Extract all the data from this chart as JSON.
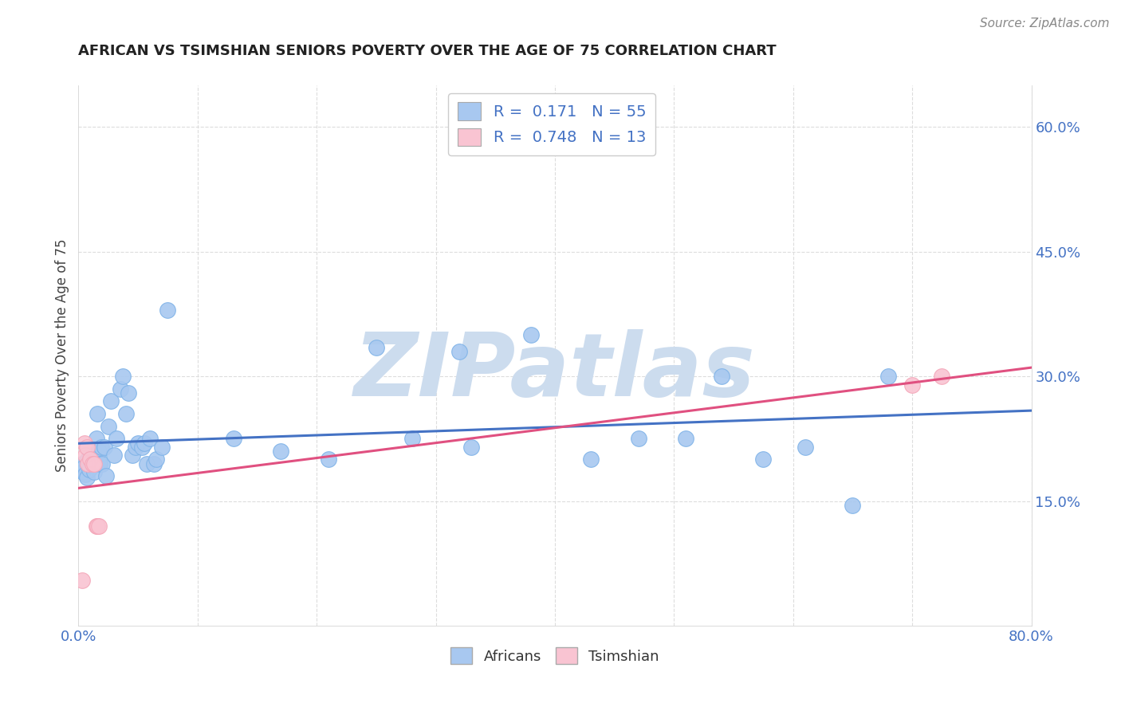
{
  "title": "AFRICAN VS TSIMSHIAN SENIORS POVERTY OVER THE AGE OF 75 CORRELATION CHART",
  "source": "Source: ZipAtlas.com",
  "ylabel": "Seniors Poverty Over the Age of 75",
  "xlim": [
    0.0,
    0.8
  ],
  "ylim": [
    0.0,
    0.65
  ],
  "african_color": "#a8c8f0",
  "african_edge_color": "#7fb3e8",
  "tsimshian_color": "#f9c4d2",
  "tsimshian_edge_color": "#f4a7b9",
  "trend_african_color": "#4472c4",
  "trend_tsimshian_color": "#e05080",
  "R_african": 0.171,
  "N_african": 55,
  "R_tsimshian": 0.748,
  "N_tsimshian": 13,
  "african_x": [
    0.003,
    0.004,
    0.005,
    0.006,
    0.007,
    0.008,
    0.009,
    0.01,
    0.011,
    0.012,
    0.013,
    0.014,
    0.015,
    0.016,
    0.017,
    0.018,
    0.019,
    0.02,
    0.022,
    0.023,
    0.025,
    0.027,
    0.03,
    0.032,
    0.035,
    0.037,
    0.04,
    0.042,
    0.045,
    0.048,
    0.05,
    0.053,
    0.055,
    0.057,
    0.06,
    0.063,
    0.065,
    0.07,
    0.075,
    0.13,
    0.17,
    0.21,
    0.25,
    0.28,
    0.33,
    0.38,
    0.43,
    0.47,
    0.51,
    0.54,
    0.575,
    0.61,
    0.65,
    0.68,
    0.32
  ],
  "african_y": [
    0.195,
    0.185,
    0.192,
    0.182,
    0.178,
    0.2,
    0.188,
    0.205,
    0.2,
    0.195,
    0.185,
    0.198,
    0.225,
    0.255,
    0.21,
    0.195,
    0.215,
    0.195,
    0.215,
    0.18,
    0.24,
    0.27,
    0.205,
    0.225,
    0.285,
    0.3,
    0.255,
    0.28,
    0.205,
    0.215,
    0.22,
    0.215,
    0.22,
    0.195,
    0.225,
    0.195,
    0.2,
    0.215,
    0.38,
    0.225,
    0.21,
    0.2,
    0.335,
    0.225,
    0.215,
    0.35,
    0.2,
    0.225,
    0.225,
    0.3,
    0.2,
    0.215,
    0.145,
    0.3,
    0.33
  ],
  "tsimshian_x": [
    0.003,
    0.005,
    0.006,
    0.007,
    0.008,
    0.01,
    0.012,
    0.013,
    0.015,
    0.016,
    0.017,
    0.7,
    0.725
  ],
  "tsimshian_y": [
    0.055,
    0.22,
    0.205,
    0.215,
    0.195,
    0.2,
    0.195,
    0.195,
    0.12,
    0.12,
    0.12,
    0.29,
    0.3
  ],
  "watermark_text": "ZIPatlas",
  "watermark_color": "#ccdcee",
  "background_color": "#ffffff",
  "grid_color": "#dddddd",
  "tick_color": "#4472c4",
  "title_color": "#222222",
  "ylabel_color": "#444444",
  "source_color": "#888888"
}
